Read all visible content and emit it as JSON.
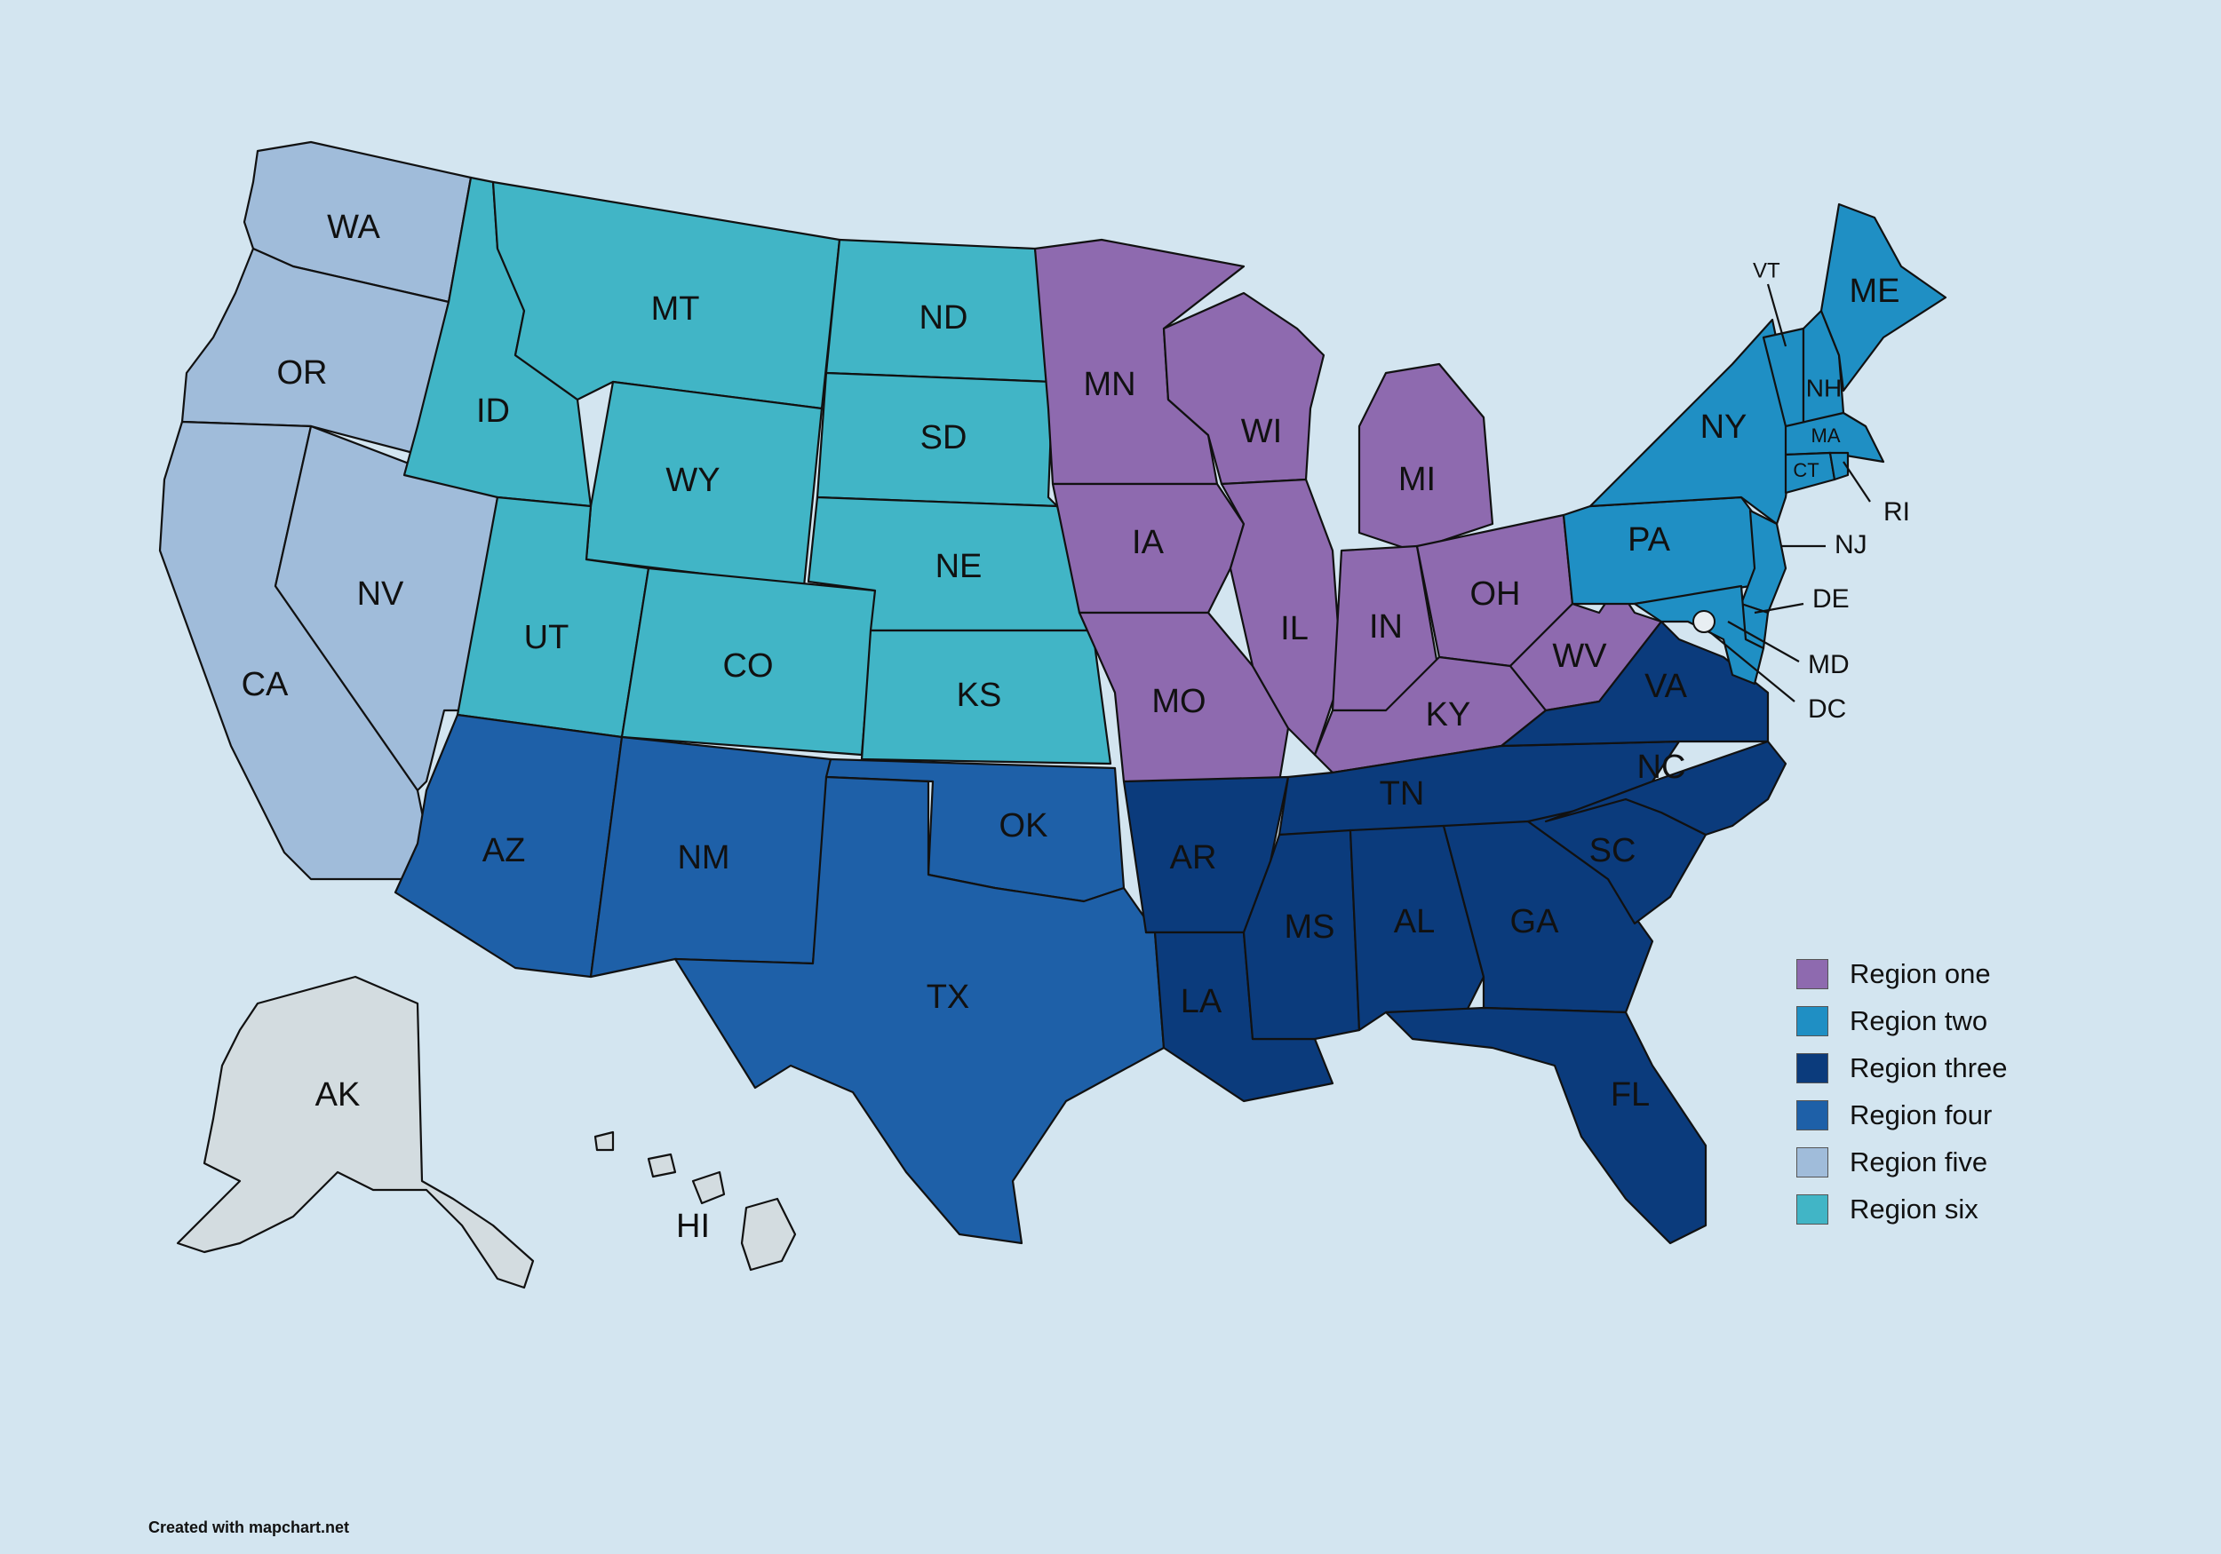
{
  "map": {
    "states": {
      "WA": "WA",
      "OR": "OR",
      "CA": "CA",
      "NV": "NV",
      "ID": "ID",
      "MT": "MT",
      "WY": "WY",
      "UT": "UT",
      "CO": "CO",
      "AZ": "AZ",
      "NM": "NM",
      "ND": "ND",
      "SD": "SD",
      "NE": "NE",
      "KS": "KS",
      "OK": "OK",
      "TX": "TX",
      "MN": "MN",
      "IA": "IA",
      "MO": "MO",
      "AR": "AR",
      "LA": "LA",
      "WI": "WI",
      "IL": "IL",
      "MI": "MI",
      "IN": "IN",
      "OH": "OH",
      "KY": "KY",
      "TN": "TN",
      "MS": "MS",
      "AL": "AL",
      "GA": "GA",
      "FL": "FL",
      "SC": "SC",
      "NC": "NC",
      "VA": "VA",
      "WV": "WV",
      "PA": "PA",
      "NY": "NY",
      "VT": "VT",
      "NH": "NH",
      "ME": "ME",
      "MA": "MA",
      "CT": "CT",
      "RI": "RI",
      "NJ": "NJ",
      "DE": "DE",
      "MD": "MD",
      "DC": "DC",
      "AK": "AK",
      "HI": "HI"
    },
    "region_colors": {
      "one": "#8e6aaf",
      "two": "#1f8fc4",
      "three": "#0b3b7c",
      "four": "#1e60a8",
      "five": "#a0bcda",
      "six": "#41b5c6",
      "none": "#d3dce0"
    }
  },
  "legend": {
    "items": [
      {
        "label": "Region one",
        "color": "#8e6aaf"
      },
      {
        "label": "Region two",
        "color": "#1f8fc4"
      },
      {
        "label": "Region three",
        "color": "#0b3b7c"
      },
      {
        "label": "Region four",
        "color": "#1e60a8"
      },
      {
        "label": "Region five",
        "color": "#a0bcda"
      },
      {
        "label": "Region six",
        "color": "#41b5c6"
      }
    ]
  },
  "credit": "Created with mapchart.net"
}
